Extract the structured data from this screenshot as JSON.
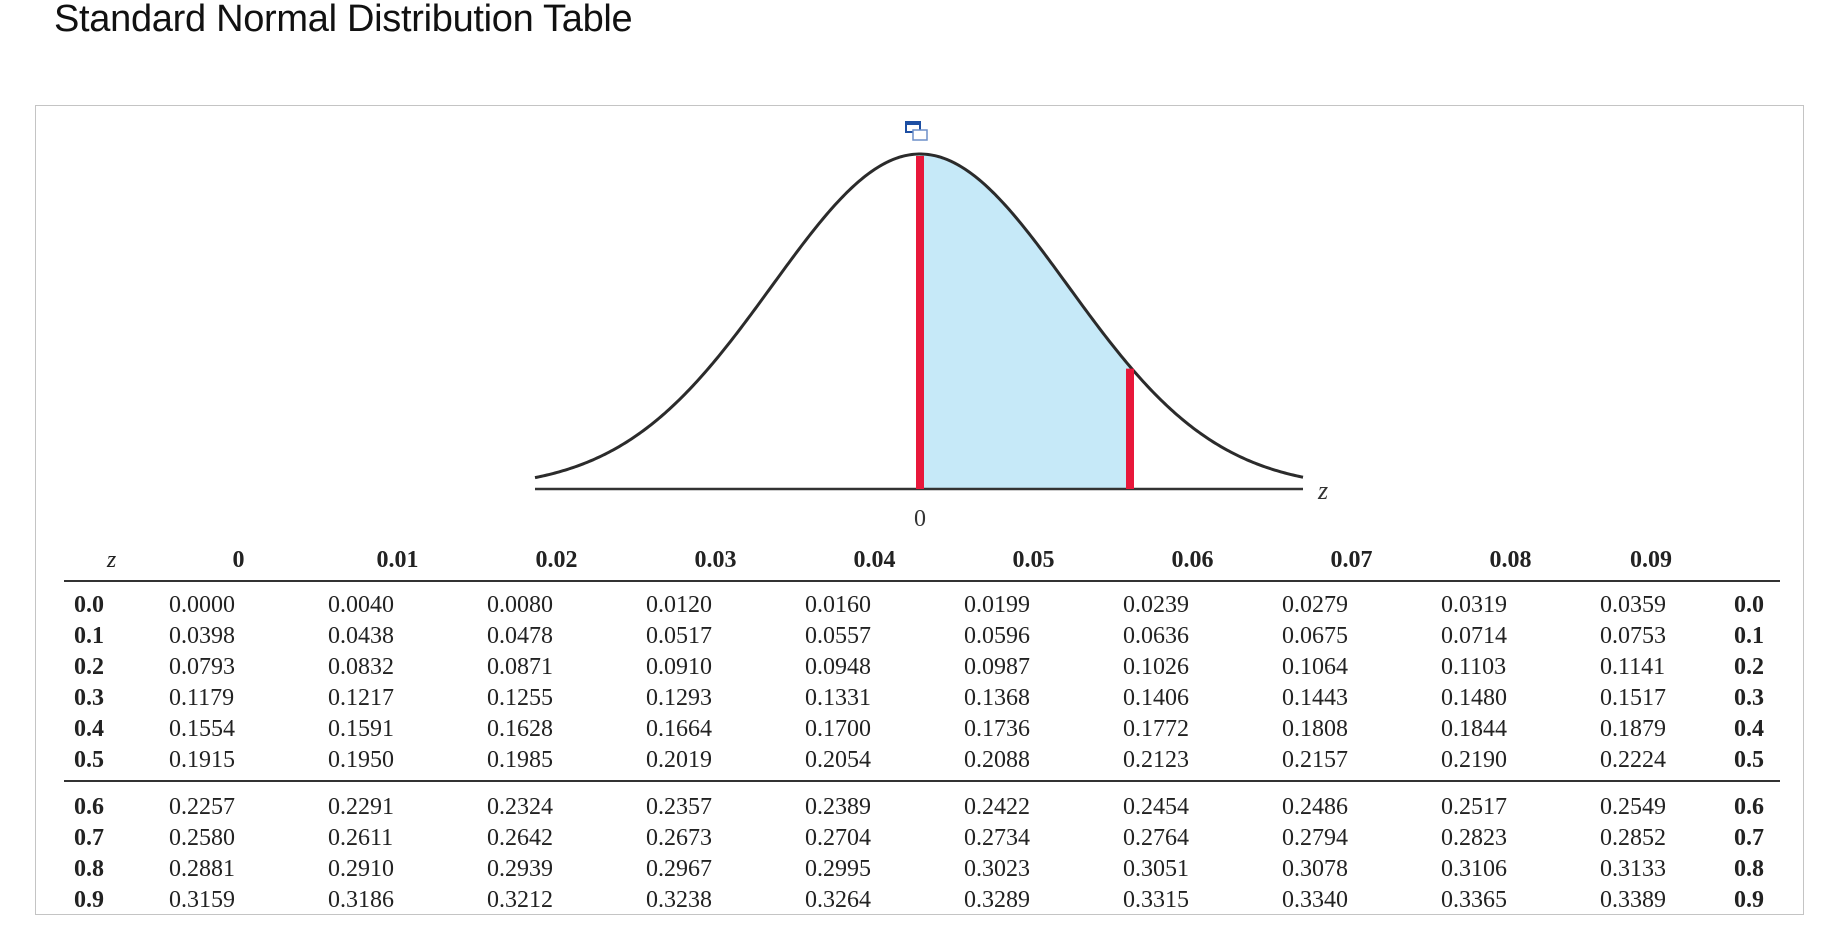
{
  "title": "Standard Normal Distribution Table",
  "figure": {
    "axis_label": "z",
    "center_label": "0",
    "colors": {
      "curve": "#2b2b2b",
      "shade": "#c6e9f8",
      "marker": "#e8173a",
      "axis": "#333333"
    }
  },
  "table": {
    "corner_header": "z",
    "columns": [
      "0",
      "0.01",
      "0.02",
      "0.03",
      "0.04",
      "0.05",
      "0.06",
      "0.07",
      "0.08",
      "0.09"
    ],
    "rows": [
      {
        "z": "0.0",
        "values": [
          "0.0000",
          "0.0040",
          "0.0080",
          "0.0120",
          "0.0160",
          "0.0199",
          "0.0239",
          "0.0279",
          "0.0319",
          "0.0359"
        ]
      },
      {
        "z": "0.1",
        "values": [
          "0.0398",
          "0.0438",
          "0.0478",
          "0.0517",
          "0.0557",
          "0.0596",
          "0.0636",
          "0.0675",
          "0.0714",
          "0.0753"
        ]
      },
      {
        "z": "0.2",
        "values": [
          "0.0793",
          "0.0832",
          "0.0871",
          "0.0910",
          "0.0948",
          "0.0987",
          "0.1026",
          "0.1064",
          "0.1103",
          "0.1141"
        ]
      },
      {
        "z": "0.3",
        "values": [
          "0.1179",
          "0.1217",
          "0.1255",
          "0.1293",
          "0.1331",
          "0.1368",
          "0.1406",
          "0.1443",
          "0.1480",
          "0.1517"
        ]
      },
      {
        "z": "0.4",
        "values": [
          "0.1554",
          "0.1591",
          "0.1628",
          "0.1664",
          "0.1700",
          "0.1736",
          "0.1772",
          "0.1808",
          "0.1844",
          "0.1879"
        ]
      },
      {
        "z": "0.5",
        "values": [
          "0.1915",
          "0.1950",
          "0.1985",
          "0.2019",
          "0.2054",
          "0.2088",
          "0.2123",
          "0.2157",
          "0.2190",
          "0.2224"
        ]
      },
      {
        "z": "0.6",
        "values": [
          "0.2257",
          "0.2291",
          "0.2324",
          "0.2357",
          "0.2389",
          "0.2422",
          "0.2454",
          "0.2486",
          "0.2517",
          "0.2549"
        ]
      },
      {
        "z": "0.7",
        "values": [
          "0.2580",
          "0.2611",
          "0.2642",
          "0.2673",
          "0.2704",
          "0.2734",
          "0.2764",
          "0.2794",
          "0.2823",
          "0.2852"
        ]
      },
      {
        "z": "0.8",
        "values": [
          "0.2881",
          "0.2910",
          "0.2939",
          "0.2967",
          "0.2995",
          "0.3023",
          "0.3051",
          "0.3078",
          "0.3106",
          "0.3133"
        ]
      },
      {
        "z": "0.9",
        "values": [
          "0.3159",
          "0.3186",
          "0.3212",
          "0.3238",
          "0.3264",
          "0.3289",
          "0.3315",
          "0.3340",
          "0.3365",
          "0.3389"
        ]
      }
    ]
  }
}
